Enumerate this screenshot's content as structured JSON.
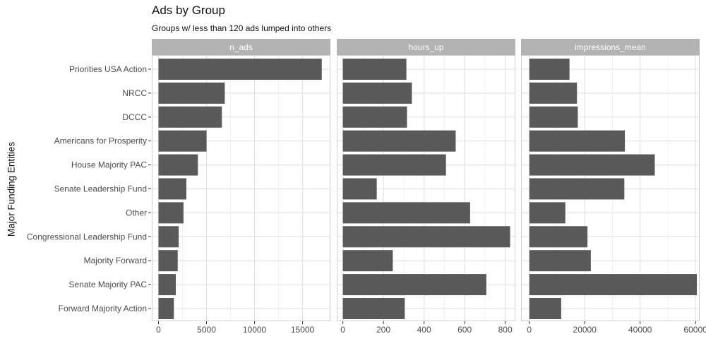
{
  "chart_data": {
    "type": "bar",
    "orientation": "horizontal",
    "title": "Ads by Group",
    "subtitle": "Groups w/ less than 120 ads lumped into others",
    "ylabel": "Major Funding Entities",
    "xlabel": "",
    "grid": true,
    "categories": [
      "Priorities USA Action",
      "NRCC",
      "DCCC",
      "Americans for Prosperity",
      "House Majority PAC",
      "Senate Leadership Fund",
      "Other",
      "Congressional Leadership Fund",
      "Majority Forward",
      "Senate Majority PAC",
      "Forward Majority Action"
    ],
    "panels": [
      {
        "name": "n_ads",
        "xlim": [
          -700,
          17900
        ],
        "ticks": [
          0,
          5000,
          10000,
          15000
        ],
        "tick_labels": [
          "0",
          "5000",
          "10000",
          "15000"
        ],
        "values": [
          17000,
          6900,
          6600,
          5000,
          4100,
          2900,
          2600,
          2100,
          2000,
          1800,
          1600
        ]
      },
      {
        "name": "hours_up",
        "xlim": [
          -30,
          850
        ],
        "ticks": [
          0,
          200,
          400,
          600,
          800
        ],
        "tick_labels": [
          "0",
          "200",
          "400",
          "600",
          "800"
        ],
        "values": [
          313,
          340,
          316,
          556,
          508,
          167,
          627,
          824,
          246,
          707,
          305
        ]
      },
      {
        "name": "impressions_mean",
        "xlim": [
          -3000,
          61500
        ],
        "ticks": [
          0,
          20000,
          40000,
          60000
        ],
        "tick_labels": [
          "0",
          "20000",
          "40000",
          "60000"
        ],
        "values": [
          14500,
          17200,
          17500,
          34500,
          45300,
          34300,
          13000,
          21000,
          22200,
          60500,
          11500
        ]
      }
    ],
    "colors": {
      "bar": "#595959",
      "strip": "#b3b3b3",
      "strip_text": "#ffffff",
      "grid_major": "#dedede",
      "grid_minor": "#efefef",
      "panel_border": "#cfcfcf",
      "axis_text": "#4d4d4d"
    }
  }
}
